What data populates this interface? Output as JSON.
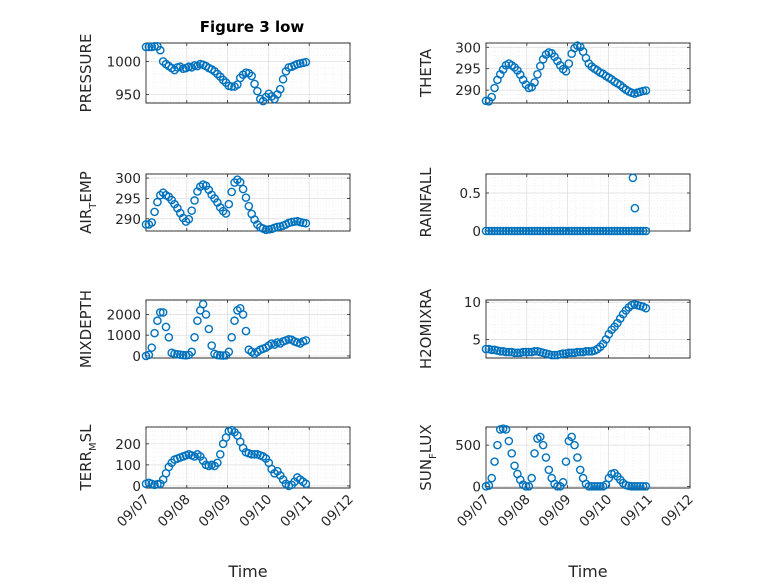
{
  "chart_data": {
    "title": "Figure 3 low",
    "type": "scatter",
    "marker": "circle",
    "color": "#0072BD",
    "grid": true,
    "minor_grid": true,
    "x_ticks": [
      "09/07",
      "09/08",
      "09/09",
      "09/10",
      "09/11",
      "09/12"
    ],
    "x_ticks_days": [
      0,
      1,
      2,
      3,
      4,
      5
    ],
    "xlim_days": [
      0,
      5
    ],
    "x_tick_rotation": 45,
    "xlabel": "Time",
    "panels": [
      {
        "ylabel": "PRESSURE",
        "ylabel_parts": [
          "PRESSURE"
        ],
        "ylim": [
          937,
          1028
        ],
        "yticks": [
          950,
          1000
        ],
        "x": [
          0,
          0.07,
          0.14,
          0.21,
          0.28,
          0.35,
          0.42,
          0.49,
          0.56,
          0.63,
          0.7,
          0.77,
          0.84,
          0.91,
          0.98,
          1.05,
          1.12,
          1.19,
          1.26,
          1.33,
          1.4,
          1.47,
          1.54,
          1.61,
          1.68,
          1.75,
          1.82,
          1.89,
          1.96,
          2.03,
          2.1,
          2.17,
          2.24,
          2.31,
          2.38,
          2.45,
          2.52,
          2.59,
          2.66,
          2.73,
          2.8,
          2.87,
          2.94,
          3.01,
          3.08,
          3.15,
          3.22,
          3.29,
          3.36,
          3.43,
          3.5,
          3.57,
          3.64,
          3.71,
          3.78,
          3.85,
          3.92
        ],
        "y": [
          1022,
          1022,
          1022,
          1023,
          1023,
          1017,
          1000,
          996,
          993,
          990,
          987,
          991,
          992,
          989,
          990,
          992,
          991,
          994,
          993,
          996,
          995,
          993,
          990,
          988,
          985,
          981,
          977,
          972,
          968,
          963,
          962,
          962,
          965,
          975,
          980,
          983,
          982,
          978,
          966,
          955,
          943,
          940,
          946,
          951,
          947,
          943,
          950,
          958,
          973,
          985,
          991,
          992,
          994,
          996,
          997,
          998,
          999
        ]
      },
      {
        "ylabel": "THETA",
        "ylabel_parts": [
          "THETA"
        ],
        "ylim": [
          287,
          301
        ],
        "yticks": [
          290,
          295,
          300
        ],
        "x": [
          0,
          0.07,
          0.14,
          0.21,
          0.28,
          0.35,
          0.42,
          0.49,
          0.56,
          0.63,
          0.7,
          0.77,
          0.84,
          0.91,
          0.98,
          1.05,
          1.12,
          1.19,
          1.26,
          1.33,
          1.4,
          1.47,
          1.54,
          1.61,
          1.68,
          1.75,
          1.82,
          1.89,
          1.96,
          2.03,
          2.1,
          2.17,
          2.24,
          2.31,
          2.38,
          2.45,
          2.52,
          2.59,
          2.66,
          2.73,
          2.8,
          2.87,
          2.94,
          3.01,
          3.08,
          3.15,
          3.22,
          3.29,
          3.36,
          3.43,
          3.5,
          3.57,
          3.64,
          3.71,
          3.78,
          3.85,
          3.92
        ],
        "y": [
          287.5,
          287.4,
          288.4,
          290.5,
          292.4,
          293.7,
          294.8,
          295.8,
          296.2,
          295.8,
          295.3,
          294.6,
          293.6,
          292.4,
          291.3,
          290.5,
          290.7,
          291.8,
          293.7,
          295.6,
          297.2,
          298.3,
          298.8,
          298.6,
          297.8,
          296.8,
          295.8,
          294.9,
          294.4,
          296.2,
          298.5,
          299.8,
          300.4,
          300.1,
          299.0,
          297.5,
          296.2,
          295.5,
          295.0,
          294.6,
          294.1,
          293.8,
          293.3,
          292.9,
          292.5,
          292.0,
          291.6,
          291.2,
          290.6,
          290.1,
          289.7,
          289.4,
          289.2,
          289.4,
          289.6,
          289.8,
          289.9
        ]
      },
      {
        "ylabel": "AIR_TEMP",
        "ylabel_parts": [
          "AIR",
          "T",
          "EMP"
        ],
        "ylim": [
          287,
          301
        ],
        "yticks": [
          290,
          295,
          300
        ],
        "x": [
          0,
          0.07,
          0.14,
          0.21,
          0.28,
          0.35,
          0.42,
          0.49,
          0.56,
          0.63,
          0.7,
          0.77,
          0.84,
          0.91,
          0.98,
          1.05,
          1.12,
          1.19,
          1.26,
          1.33,
          1.4,
          1.47,
          1.54,
          1.61,
          1.68,
          1.75,
          1.82,
          1.89,
          1.96,
          2.03,
          2.1,
          2.17,
          2.24,
          2.31,
          2.38,
          2.45,
          2.52,
          2.59,
          2.66,
          2.73,
          2.8,
          2.87,
          2.94,
          3.01,
          3.08,
          3.15,
          3.22,
          3.29,
          3.36,
          3.43,
          3.5,
          3.57,
          3.64,
          3.71,
          3.78,
          3.85,
          3.92
        ],
        "y": [
          288.6,
          288.6,
          289.1,
          291.7,
          294.1,
          295.8,
          296.4,
          295.8,
          295.4,
          294.6,
          293.6,
          292.6,
          291.4,
          290.2,
          289.3,
          289.9,
          292.0,
          294.5,
          296.7,
          297.9,
          298.4,
          298.1,
          297.1,
          295.9,
          295.0,
          294.0,
          292.8,
          291.9,
          291.3,
          293.6,
          296.6,
          298.9,
          299.6,
          299.0,
          297.3,
          295.2,
          293.1,
          291.2,
          289.8,
          288.6,
          287.9,
          287.6,
          287.3,
          287.4,
          287.5,
          287.8,
          288.0,
          288.1,
          288.3,
          288.6,
          289.0,
          289.2,
          289.3,
          289.4,
          289.2,
          289.0,
          288.9
        ]
      },
      {
        "ylabel": "RAINFALL",
        "ylabel_parts": [
          "RAINFALL"
        ],
        "ylim": [
          0,
          0.75
        ],
        "yticks": [
          0,
          0.5
        ],
        "x": [
          0,
          0.07,
          0.14,
          0.21,
          0.28,
          0.35,
          0.42,
          0.49,
          0.56,
          0.63,
          0.7,
          0.77,
          0.84,
          0.91,
          0.98,
          1.05,
          1.12,
          1.19,
          1.26,
          1.33,
          1.4,
          1.47,
          1.54,
          1.61,
          1.68,
          1.75,
          1.82,
          1.89,
          1.96,
          2.03,
          2.1,
          2.17,
          2.24,
          2.31,
          2.38,
          2.45,
          2.52,
          2.59,
          2.66,
          2.73,
          2.8,
          2.87,
          2.94,
          3.01,
          3.08,
          3.15,
          3.22,
          3.29,
          3.36,
          3.43,
          3.5,
          3.57,
          3.64,
          3.71,
          3.78,
          3.85,
          3.92,
          3.6,
          3.65
        ],
        "y": [
          0,
          0,
          0,
          0,
          0,
          0,
          0,
          0,
          0,
          0,
          0,
          0,
          0,
          0,
          0,
          0,
          0,
          0,
          0,
          0,
          0,
          0,
          0,
          0,
          0,
          0,
          0,
          0,
          0,
          0,
          0,
          0,
          0,
          0,
          0,
          0,
          0,
          0,
          0,
          0,
          0,
          0,
          0,
          0,
          0,
          0,
          0,
          0,
          0,
          0,
          0,
          0,
          0,
          0,
          0,
          0,
          0,
          0.7,
          0.3
        ]
      },
      {
        "ylabel": "MIXDEPTH",
        "ylabel_parts": [
          "MIXDEPTH"
        ],
        "ylim": [
          -100,
          2700
        ],
        "yticks": [
          0,
          1000,
          2000
        ],
        "x": [
          0,
          0.07,
          0.14,
          0.21,
          0.28,
          0.35,
          0.42,
          0.49,
          0.56,
          0.63,
          0.7,
          0.77,
          0.84,
          0.91,
          0.98,
          1.05,
          1.12,
          1.19,
          1.26,
          1.33,
          1.4,
          1.47,
          1.54,
          1.61,
          1.68,
          1.75,
          1.82,
          1.89,
          1.96,
          2.03,
          2.1,
          2.17,
          2.24,
          2.31,
          2.38,
          2.45,
          2.52,
          2.59,
          2.66,
          2.73,
          2.8,
          2.87,
          2.94,
          3.01,
          3.08,
          3.15,
          3.22,
          3.29,
          3.36,
          3.43,
          3.5,
          3.57,
          3.64,
          3.71,
          3.78,
          3.85,
          3.92
        ],
        "y": [
          0,
          50,
          400,
          1100,
          1700,
          2100,
          2100,
          1400,
          900,
          150,
          100,
          80,
          60,
          40,
          30,
          50,
          200,
          900,
          1700,
          2200,
          2500,
          2000,
          1300,
          500,
          100,
          40,
          30,
          20,
          30,
          200,
          900,
          1700,
          2200,
          2300,
          2000,
          1200,
          300,
          200,
          100,
          200,
          300,
          350,
          400,
          500,
          600,
          550,
          650,
          600,
          700,
          750,
          800,
          780,
          700,
          650,
          600,
          700,
          750
        ]
      },
      {
        "ylabel": "H2OMIXRA",
        "ylabel_parts": [
          "H2OMIXRA"
        ],
        "ylim": [
          2.5,
          10.3
        ],
        "yticks": [
          5,
          10
        ],
        "x": [
          0,
          0.07,
          0.14,
          0.21,
          0.28,
          0.35,
          0.42,
          0.49,
          0.56,
          0.63,
          0.7,
          0.77,
          0.84,
          0.91,
          0.98,
          1.05,
          1.12,
          1.19,
          1.26,
          1.33,
          1.4,
          1.47,
          1.54,
          1.61,
          1.68,
          1.75,
          1.82,
          1.89,
          1.96,
          2.03,
          2.1,
          2.17,
          2.24,
          2.31,
          2.38,
          2.45,
          2.52,
          2.59,
          2.66,
          2.73,
          2.8,
          2.87,
          2.94,
          3.01,
          3.08,
          3.15,
          3.22,
          3.29,
          3.36,
          3.43,
          3.5,
          3.57,
          3.64,
          3.71,
          3.78,
          3.85,
          3.92
        ],
        "y": [
          3.7,
          3.7,
          3.6,
          3.6,
          3.5,
          3.4,
          3.4,
          3.3,
          3.3,
          3.3,
          3.2,
          3.2,
          3.2,
          3.3,
          3.3,
          3.3,
          3.3,
          3.4,
          3.4,
          3.3,
          3.2,
          3.1,
          3.0,
          2.9,
          2.9,
          2.9,
          3.0,
          3.1,
          3.1,
          3.2,
          3.2,
          3.2,
          3.3,
          3.3,
          3.3,
          3.4,
          3.4,
          3.4,
          3.5,
          3.7,
          4.0,
          4.4,
          5.0,
          5.7,
          6.3,
          6.7,
          7.2,
          7.8,
          8.4,
          8.9,
          9.3,
          9.6,
          9.7,
          9.6,
          9.5,
          9.4,
          9.2
        ]
      },
      {
        "ylabel": "TERR_MSL",
        "ylabel_parts": [
          "TERR",
          "M",
          "SL"
        ],
        "ylim": [
          -10,
          280
        ],
        "yticks": [
          0,
          100,
          200
        ],
        "x": [
          0,
          0.07,
          0.14,
          0.21,
          0.28,
          0.35,
          0.42,
          0.49,
          0.56,
          0.63,
          0.7,
          0.77,
          0.84,
          0.91,
          0.98,
          1.05,
          1.12,
          1.19,
          1.26,
          1.33,
          1.4,
          1.47,
          1.54,
          1.61,
          1.68,
          1.75,
          1.82,
          1.89,
          1.96,
          2.03,
          2.1,
          2.17,
          2.24,
          2.31,
          2.38,
          2.45,
          2.52,
          2.59,
          2.66,
          2.73,
          2.8,
          2.87,
          2.94,
          3.01,
          3.08,
          3.15,
          3.22,
          3.29,
          3.36,
          3.43,
          3.5,
          3.57,
          3.64,
          3.71,
          3.78,
          3.85,
          3.92
        ],
        "y": [
          10,
          15,
          10,
          5,
          8,
          10,
          30,
          60,
          90,
          110,
          125,
          130,
          135,
          140,
          145,
          150,
          145,
          140,
          150,
          140,
          120,
          100,
          95,
          100,
          95,
          110,
          150,
          200,
          230,
          260,
          265,
          255,
          240,
          210,
          180,
          160,
          155,
          150,
          150,
          150,
          145,
          140,
          130,
          110,
          80,
          60,
          70,
          50,
          30,
          10,
          0,
          5,
          20,
          40,
          30,
          20,
          10
        ]
      },
      {
        "ylabel": "SUN_FLUX",
        "ylabel_parts": [
          "SUN",
          "F",
          "LUX"
        ],
        "ylim": [
          -20,
          720
        ],
        "yticks": [
          0,
          500
        ],
        "x": [
          0,
          0.07,
          0.14,
          0.21,
          0.28,
          0.35,
          0.42,
          0.49,
          0.56,
          0.63,
          0.7,
          0.77,
          0.84,
          0.91,
          0.98,
          1.05,
          1.12,
          1.19,
          1.26,
          1.33,
          1.4,
          1.47,
          1.54,
          1.61,
          1.68,
          1.75,
          1.82,
          1.89,
          1.96,
          2.03,
          2.1,
          2.17,
          2.24,
          2.31,
          2.38,
          2.45,
          2.52,
          2.59,
          2.66,
          2.73,
          2.8,
          2.87,
          2.94,
          3.01,
          3.08,
          3.15,
          3.22,
          3.29,
          3.36,
          3.43,
          3.5,
          3.57,
          3.64,
          3.71,
          3.78,
          3.85,
          3.92
        ],
        "y": [
          0,
          10,
          100,
          300,
          500,
          690,
          700,
          690,
          550,
          400,
          250,
          150,
          80,
          20,
          0,
          0,
          100,
          400,
          580,
          600,
          500,
          350,
          200,
          100,
          30,
          0,
          0,
          50,
          300,
          550,
          600,
          500,
          350,
          200,
          100,
          30,
          0,
          0,
          0,
          0,
          0,
          0,
          20,
          100,
          150,
          160,
          120,
          80,
          40,
          15,
          5,
          0,
          0,
          0,
          0,
          0,
          0
        ]
      }
    ]
  }
}
